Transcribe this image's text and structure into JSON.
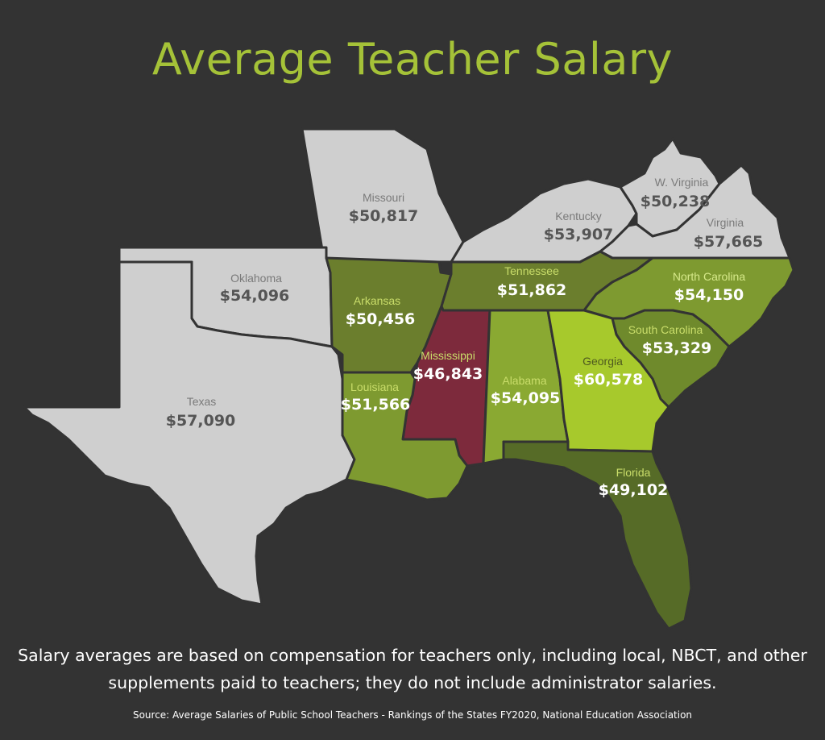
{
  "title": "Average Teacher Salary",
  "colors": {
    "background": "#333333",
    "title": "#a5c238",
    "non_ranked_state": "#cfcfcf",
    "dark_green": "#6b7e2d",
    "mid_green": "#7e9a30",
    "light_green": "#9cbd2f",
    "bright_green": "#a7c92c",
    "olive_dark": "#566b27",
    "mississippi": "#7d2a3c"
  },
  "states": [
    {
      "name": "Missouri",
      "value": "$50,817",
      "fill": "#cfcfcf"
    },
    {
      "name": "Kentucky",
      "value": "$53,907",
      "fill": "#cfcfcf"
    },
    {
      "name": "W. Virginia",
      "value": "$50,238",
      "fill": "#cfcfcf"
    },
    {
      "name": "Virginia",
      "value": "$57,665",
      "fill": "#cfcfcf"
    },
    {
      "name": "Oklahoma",
      "value": "$54,096",
      "fill": "#cfcfcf"
    },
    {
      "name": "Texas",
      "value": "$57,090",
      "fill": "#cfcfcf"
    },
    {
      "name": "Arkansas",
      "value": "$50,456",
      "fill": "#6b7e2d"
    },
    {
      "name": "Tennessee",
      "value": "$51,862",
      "fill": "#6b7e2d"
    },
    {
      "name": "North Carolina",
      "value": "$54,150",
      "fill": "#7e9a30"
    },
    {
      "name": "South Carolina",
      "value": "$53,329",
      "fill": "#6f8a2c"
    },
    {
      "name": "Mississippi",
      "value": "$46,843",
      "fill": "#7d2a3c"
    },
    {
      "name": "Louisiana",
      "value": "$51,566",
      "fill": "#7e9a30"
    },
    {
      "name": "Alabama",
      "value": "$54,095",
      "fill": "#8aa932"
    },
    {
      "name": "Georgia",
      "value": "$60,578",
      "fill": "#a7c92c"
    },
    {
      "name": "Florida",
      "value": "$49,102",
      "fill": "#566b27"
    }
  ],
  "note": "Salary averages are based on compensation for teachers only, including local, NBCT, and other supplements paid to teachers; they do not include administrator salaries.",
  "source": "Source: Average Salaries of Public School Teachers - Rankings of the States FY2020, National Education Association"
}
